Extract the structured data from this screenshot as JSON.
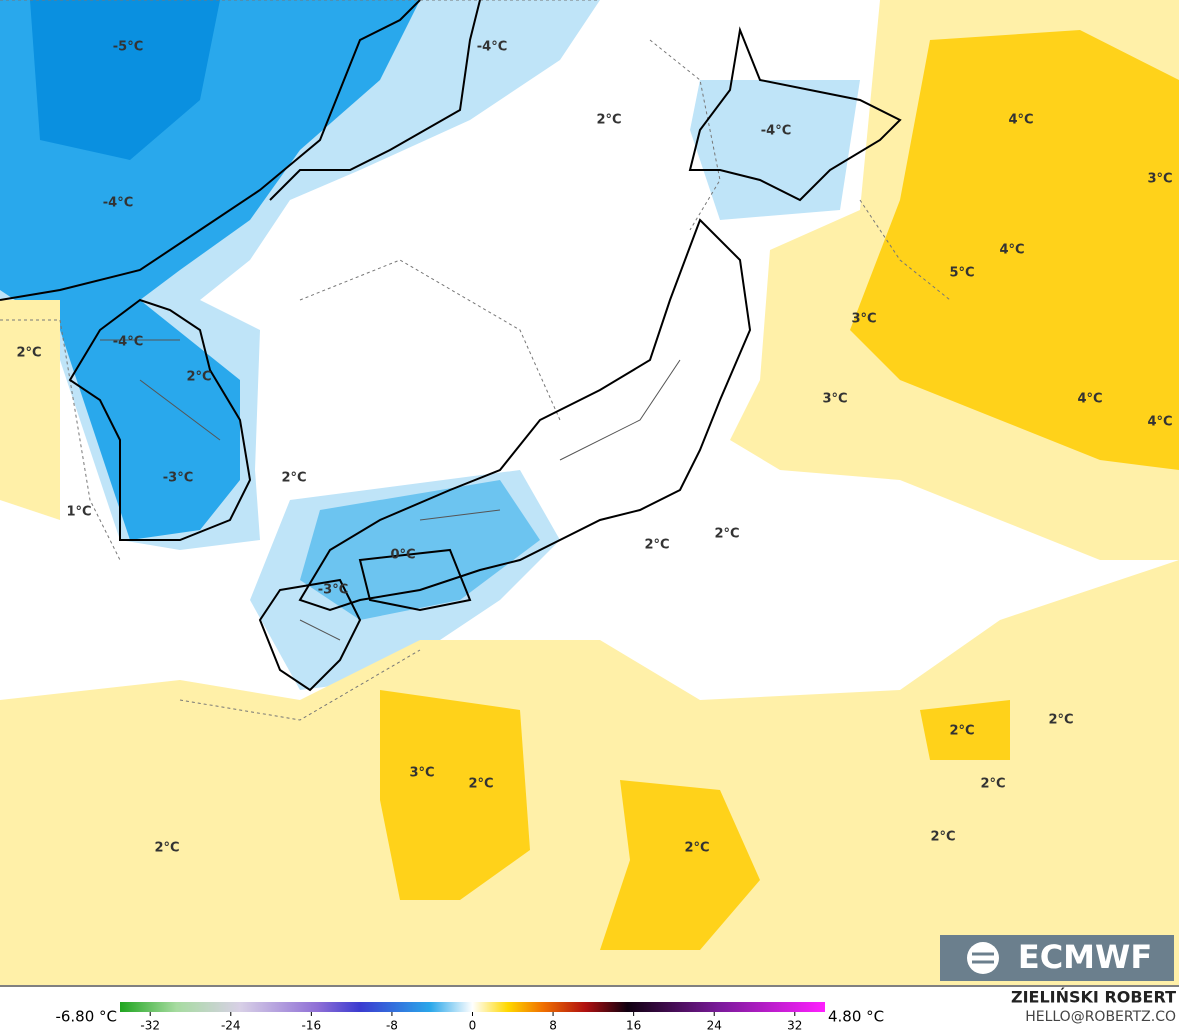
{
  "map": {
    "labels": [
      "-5°C",
      "-4°C",
      "2°C",
      "-4°C",
      "4°C",
      "3°C",
      "-4°C",
      "4°C",
      "5°C",
      "3°C",
      "2°C",
      "-4°C",
      "2°C",
      "3°C",
      "4°C",
      "4°C",
      "2°C",
      "-3°C",
      "1°C",
      "2°C",
      "2°C",
      "0°C",
      "-3°C",
      "2°C",
      "2°C",
      "3°C",
      "2°C",
      "2°C",
      "2°C",
      "2°C",
      "2°C"
    ],
    "logo": "ECMWF",
    "author": "ZIELIŃSKI ROBERT",
    "email": "HELLO@ROBERTZ.CO"
  },
  "colorbar": {
    "min_label": "-6.80 °C",
    "max_label": "4.80 °C",
    "range": [
      -35,
      35
    ],
    "ticks": [
      -32,
      -24,
      -16,
      -8,
      0,
      8,
      16,
      24,
      32
    ]
  }
}
